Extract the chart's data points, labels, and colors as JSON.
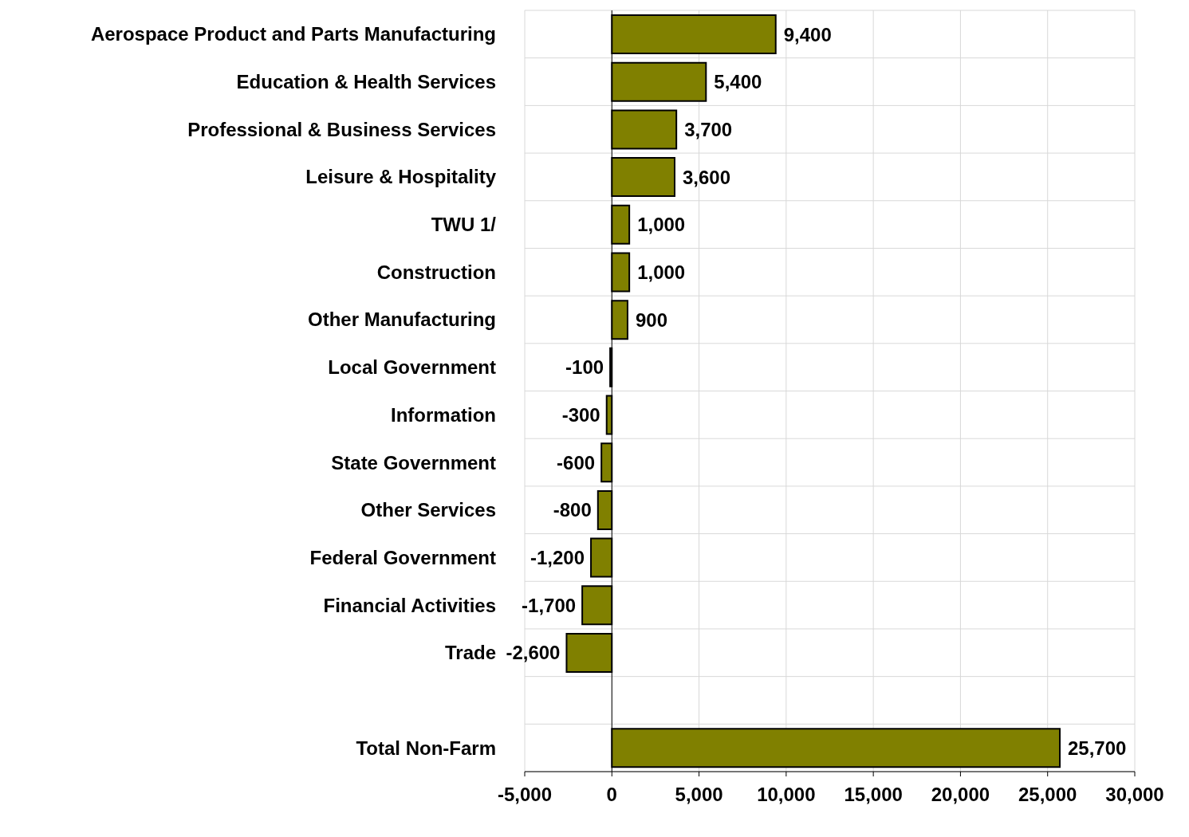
{
  "chart_data": {
    "type": "bar",
    "orientation": "horizontal",
    "categories": [
      "Aerospace Product and Parts Manufacturing",
      "Education & Health Services",
      "Professional & Business Services",
      "Leisure & Hospitality",
      "TWU 1/",
      "Construction",
      "Other Manufacturing",
      "Local Government",
      "Information",
      "State Government",
      "Other Services",
      "Federal Government",
      "Financial Activities",
      "Trade",
      null,
      "Total Non-Farm"
    ],
    "values": [
      9400,
      5400,
      3700,
      3600,
      1000,
      1000,
      900,
      -100,
      -300,
      -600,
      -800,
      -1200,
      -1700,
      -2600,
      null,
      25700
    ],
    "color": "#808000",
    "value_labels": [
      "9,400",
      "5,400",
      "3,700",
      "3,600",
      "1,000",
      "1,000",
      "900",
      "-100",
      "-300",
      "-600",
      "-800",
      "-1,200",
      "-1,700",
      "-2,600",
      null,
      "25,700"
    ],
    "xlim": [
      -5000,
      30000
    ],
    "xticks": [
      {
        "value": -5000,
        "label": "-5,000"
      },
      0,
      {
        "value": 5000,
        "label": "5,000"
      },
      {
        "value": 10000,
        "label": "10,000"
      },
      {
        "value": 15000,
        "label": "15,000"
      },
      {
        "value": 20000,
        "label": "20,000"
      },
      {
        "value": 25000,
        "label": "25,000"
      },
      {
        "value": 30000,
        "label": "30,000"
      }
    ],
    "grid": true
  }
}
